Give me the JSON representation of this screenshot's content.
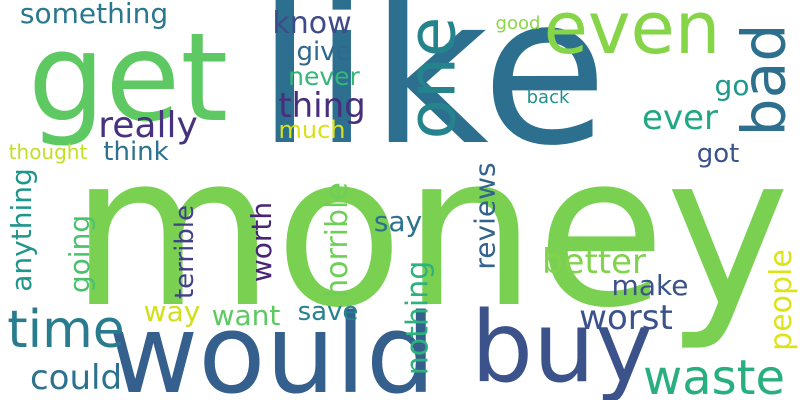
{
  "word_cloud": {
    "background": "#ffffff",
    "words": [
      {
        "text": "like",
        "color": "#2c6f8e"
      },
      {
        "text": "money",
        "color": "#7ad151"
      },
      {
        "text": "get",
        "color": "#5ec962"
      },
      {
        "text": "would",
        "color": "#35608d"
      },
      {
        "text": "buy",
        "color": "#3b528b"
      },
      {
        "text": "even",
        "color": "#86d549"
      },
      {
        "text": "one",
        "color": "#25838e"
      },
      {
        "text": "bad",
        "color": "#2d708e"
      },
      {
        "text": "waste",
        "color": "#29af7f"
      },
      {
        "text": "time",
        "color": "#287c8e"
      },
      {
        "text": "really",
        "color": "#46327e"
      },
      {
        "text": "something",
        "color": "#2a788e"
      },
      {
        "text": "know",
        "color": "#3e4a89"
      },
      {
        "text": "give",
        "color": "#31688e"
      },
      {
        "text": "never",
        "color": "#35b779"
      },
      {
        "text": "thing",
        "color": "#472f7d"
      },
      {
        "text": "much",
        "color": "#d8e219"
      },
      {
        "text": "think",
        "color": "#2c728e"
      },
      {
        "text": "thought",
        "color": "#c2df23"
      },
      {
        "text": "ever",
        "color": "#22a785"
      },
      {
        "text": "go",
        "color": "#1f9a8a"
      },
      {
        "text": "got",
        "color": "#3b528b"
      },
      {
        "text": "good",
        "color": "#8bd646"
      },
      {
        "text": "back",
        "color": "#21918c"
      },
      {
        "text": "anything",
        "color": "#1f958b"
      },
      {
        "text": "going",
        "color": "#4ac16d"
      },
      {
        "text": "terrible",
        "color": "#424086"
      },
      {
        "text": "worth",
        "color": "#482576"
      },
      {
        "text": "horrible",
        "color": "#6ece58"
      },
      {
        "text": "say",
        "color": "#2c728e"
      },
      {
        "text": "reviews",
        "color": "#33638d"
      },
      {
        "text": "nothing",
        "color": "#2db27d"
      },
      {
        "text": "better",
        "color": "#81d34d"
      },
      {
        "text": "people",
        "color": "#dde318"
      },
      {
        "text": "make",
        "color": "#3b528b"
      },
      {
        "text": "way",
        "color": "#d0e11c"
      },
      {
        "text": "want",
        "color": "#5ec962"
      },
      {
        "text": "save",
        "color": "#26828e"
      },
      {
        "text": "worst",
        "color": "#3b528b"
      },
      {
        "text": "could",
        "color": "#2c728e"
      }
    ]
  }
}
